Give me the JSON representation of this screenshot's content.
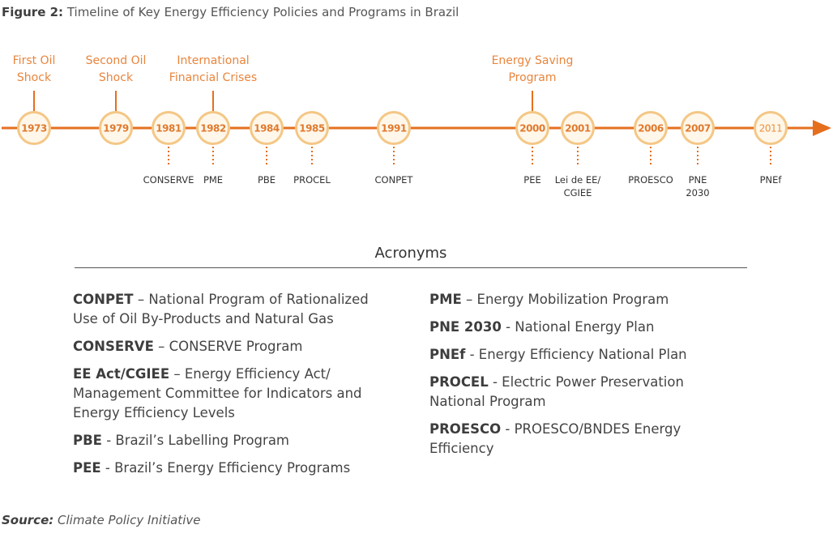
{
  "figure_label": "Figure 2:",
  "figure_title": "Timeline of Key Energy Efficiency Policies and Programs in Brazil",
  "events": [
    {
      "year": "1973",
      "lines": [
        "First Oil",
        "Shock"
      ]
    },
    {
      "year": "1979",
      "lines": [
        "Second Oil",
        "Shock"
      ]
    },
    {
      "year": "1982",
      "lines": [
        "International",
        "Financial Crises"
      ]
    },
    {
      "year": "2000",
      "lines": [
        "Energy Saving",
        "Program"
      ]
    }
  ],
  "years": [
    "1973",
    "1979",
    "1981",
    "1982",
    "1984",
    "1985",
    "1991",
    "2000",
    "2001",
    "2006",
    "2007",
    "2011"
  ],
  "policies": [
    {
      "year": "1981",
      "lines": [
        "CONSERVE"
      ]
    },
    {
      "year": "1982",
      "lines": [
        "PME"
      ]
    },
    {
      "year": "1984",
      "lines": [
        "PBE"
      ]
    },
    {
      "year": "1985",
      "lines": [
        "PROCEL"
      ]
    },
    {
      "year": "1991",
      "lines": [
        "CONPET"
      ]
    },
    {
      "year": "2000",
      "lines": [
        "PEE"
      ]
    },
    {
      "year": "2001",
      "lines": [
        "Lei de EE/",
        "CGIEE"
      ]
    },
    {
      "year": "2006",
      "lines": [
        "PROESCO"
      ]
    },
    {
      "year": "2007",
      "lines": [
        "PNE",
        "2030"
      ]
    },
    {
      "year": "2011",
      "lines": [
        "PNEf"
      ]
    }
  ],
  "acronyms_heading": "Acronyms",
  "acronyms_left": [
    {
      "term": "CONPET",
      "sep": " – ",
      "desc": "National Program of Rationalized Use of Oil By-Products and Natural Gas"
    },
    {
      "term": "CONSERVE",
      "sep": " – ",
      "desc": "CONSERVE Program"
    },
    {
      "term": "EE Act/CGIEE",
      "sep": " – ",
      "desc": "Energy Efficiency Act/ Management Committee for Indicators and Energy Efficiency Levels"
    },
    {
      "term": "PBE",
      "sep": " - ",
      "desc": "Brazil’s Labelling Program"
    },
    {
      "term": "PEE",
      "sep": " - ",
      "desc": "Brazil’s Energy Efficiency Programs"
    }
  ],
  "acronyms_right": [
    {
      "term": "PME",
      "sep": " – ",
      "desc": "Energy Mobilization Program"
    },
    {
      "term": "PNE 2030",
      "sep": " - ",
      "desc": "National Energy Plan"
    },
    {
      "term": "PNEf",
      "sep": " - ",
      "desc": "Energy Efficiency National Plan"
    },
    {
      "term": "PROCEL",
      "sep": " - ",
      "desc": "Electric Power Preservation National Program"
    },
    {
      "term": "PROESCO",
      "sep": " - ",
      "desc": "PROESCO/BNDES Energy Efficiency"
    }
  ],
  "source_label": "Source:",
  "source_text": "Climate Policy Initiative",
  "colors": {
    "accent": "#e56f1f",
    "node_ring": "#f4c786",
    "node_fill": "#fff7ea",
    "text": "#444444"
  }
}
